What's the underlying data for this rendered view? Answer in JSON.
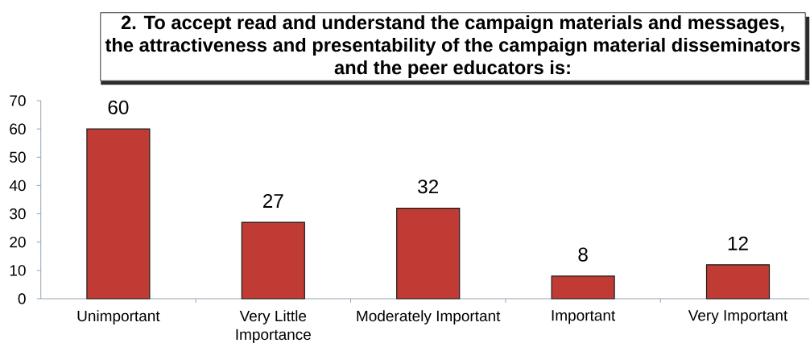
{
  "chart_data": {
    "type": "bar",
    "title": "2. To accept read and understand the campaign materials and messages, the attractiveness and presentability of the campaign material disseminators and the peer educators is:",
    "categories": [
      "Unimportant",
      "Very Little Importance",
      "Moderately Important",
      "Important",
      "Very Important"
    ],
    "values": [
      60,
      27,
      32,
      8,
      12
    ],
    "color": "#bf3b33",
    "ylim": [
      0,
      70
    ],
    "yticks": [
      0,
      10,
      20,
      30,
      40,
      50,
      60,
      70
    ],
    "data_labels": true
  }
}
